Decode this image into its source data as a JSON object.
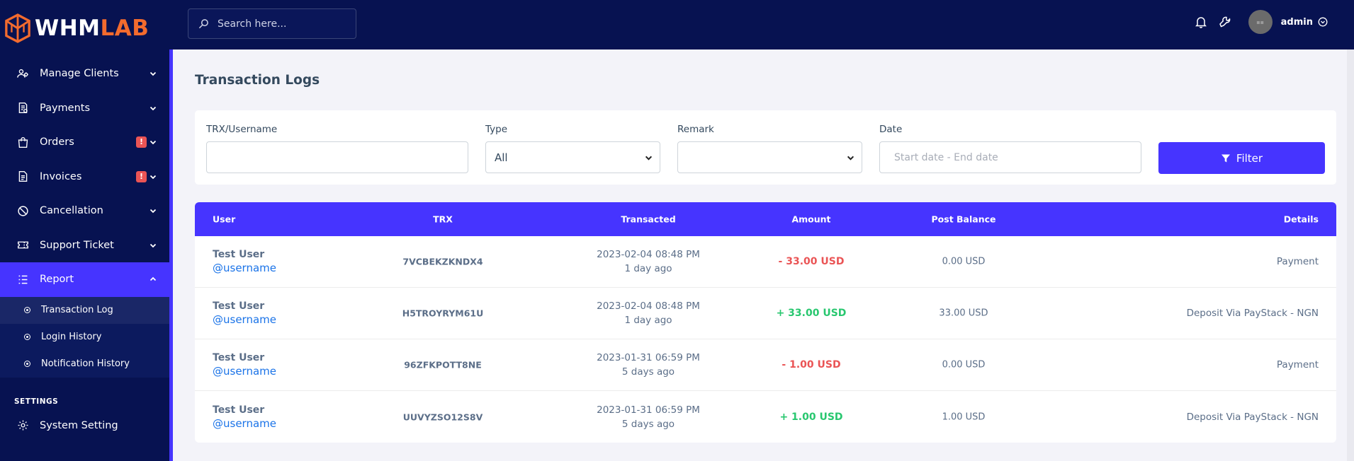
{
  "brand": {
    "part1": "WHM",
    "part2": "LAB"
  },
  "sidebar": {
    "items": [
      {
        "label": "Manage Clients",
        "icon": "users-cog-icon",
        "badge": ""
      },
      {
        "label": "Payments",
        "icon": "receipt-icon",
        "badge": ""
      },
      {
        "label": "Orders",
        "icon": "shopping-bag-icon",
        "badge": "!"
      },
      {
        "label": "Invoices",
        "icon": "document-icon",
        "badge": "!"
      },
      {
        "label": "Cancellation",
        "icon": "ban-icon",
        "badge": ""
      },
      {
        "label": "Support Ticket",
        "icon": "ticket-icon",
        "badge": ""
      },
      {
        "label": "Report",
        "icon": "list-icon",
        "badge": ""
      }
    ],
    "report_sub": [
      "Transaction Log",
      "Login History",
      "Notification History"
    ],
    "section_settings": "SETTINGS",
    "system_setting": "System Setting"
  },
  "topbar": {
    "search_placeholder": "Search here...",
    "user": "admin"
  },
  "page": {
    "title": "Transaction Logs"
  },
  "filters": {
    "trx_label": "TRX/Username",
    "trx_value": "",
    "type_label": "Type",
    "type_value": "All",
    "remark_label": "Remark",
    "remark_value": "",
    "date_label": "Date",
    "date_placeholder": "Start date - End date",
    "button_label": "Filter"
  },
  "table": {
    "headers": {
      "user": "User",
      "trx": "TRX",
      "transacted": "Transacted",
      "amount": "Amount",
      "post_balance": "Post Balance",
      "details": "Details"
    },
    "rows": [
      {
        "name": "Test User",
        "username": "@username",
        "trx": "7VCBEKZKNDX4",
        "date": "2023-02-04 08:48 PM",
        "ago": "1 day ago",
        "amount": "- 33.00 USD",
        "sign": "neg",
        "balance": "0.00 USD",
        "details": "Payment"
      },
      {
        "name": "Test User",
        "username": "@username",
        "trx": "H5TROYRYM61U",
        "date": "2023-02-04 08:48 PM",
        "ago": "1 day ago",
        "amount": "+ 33.00 USD",
        "sign": "pos",
        "balance": "33.00 USD",
        "details": "Deposit Via PayStack - NGN"
      },
      {
        "name": "Test User",
        "username": "@username",
        "trx": "96ZFKPOTT8NE",
        "date": "2023-01-31 06:59 PM",
        "ago": "5 days ago",
        "amount": "- 1.00 USD",
        "sign": "neg",
        "balance": "0.00 USD",
        "details": "Payment"
      },
      {
        "name": "Test User",
        "username": "@username",
        "trx": "UUVYZSO12S8V",
        "date": "2023-01-31 06:59 PM",
        "ago": "5 days ago",
        "amount": "+ 1.00 USD",
        "sign": "pos",
        "balance": "1.00 USD",
        "details": "Deposit Via PayStack - NGN"
      }
    ]
  },
  "colors": {
    "sidebar_bg": "#071251",
    "accent": "#4634ff",
    "brand_orange": "#f36b2e",
    "negative": "#ea5455",
    "positive": "#28c76f"
  }
}
